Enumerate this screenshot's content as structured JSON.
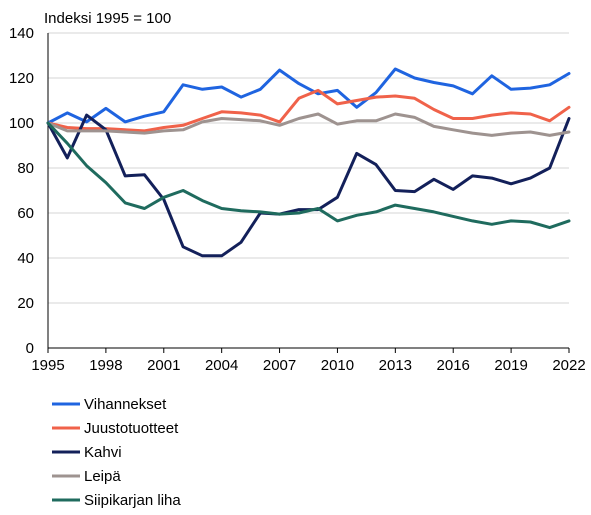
{
  "chart_data": {
    "type": "line",
    "title": "Indeksi 1995 = 100",
    "xlabel": "",
    "ylabel": "",
    "x": [
      1995,
      1996,
      1997,
      1998,
      1999,
      2000,
      2001,
      2002,
      2003,
      2004,
      2005,
      2006,
      2007,
      2008,
      2009,
      2010,
      2011,
      2012,
      2013,
      2014,
      2015,
      2016,
      2017,
      2018,
      2019,
      2020,
      2021,
      2022
    ],
    "xlim": [
      1995,
      2022
    ],
    "ylim": [
      0,
      140
    ],
    "x_ticks": [
      "1995",
      "1998",
      "2001",
      "2004",
      "2007",
      "2010",
      "2013",
      "2016",
      "2019",
      "2022"
    ],
    "y_ticks": [
      "0",
      "20",
      "40",
      "60",
      "80",
      "100",
      "120",
      "140"
    ],
    "grid": "horizontal",
    "legend": "bottom-left",
    "series": [
      {
        "name": "Vihannekset",
        "color": "#1f64e0",
        "values": [
          100,
          104.5,
          100.5,
          106.5,
          100.5,
          103,
          105,
          117,
          115,
          116,
          111.5,
          115,
          123.5,
          117.5,
          113,
          114.5,
          107,
          113.5,
          124,
          120,
          118,
          116.5,
          113,
          121,
          115,
          115.5,
          117,
          122
        ]
      },
      {
        "name": "Juustotuotteet",
        "color": "#f0624a",
        "values": [
          100,
          98,
          97.5,
          97.5,
          97,
          96.5,
          98,
          99,
          102,
          105,
          104.5,
          103.5,
          100.5,
          111,
          114.5,
          108.5,
          110,
          111.5,
          112,
          111,
          106,
          102,
          102,
          103.5,
          104.5,
          104,
          101,
          107
        ]
      },
      {
        "name": "Kahvi",
        "color": "#13205a",
        "values": [
          100,
          84.5,
          103.5,
          97,
          76.5,
          77,
          66,
          45,
          41,
          41,
          47,
          60,
          59.5,
          61.5,
          61.5,
          67,
          86.5,
          81.5,
          70,
          69.5,
          75,
          70.5,
          76.5,
          75.5,
          73,
          75.5,
          80,
          102
        ]
      },
      {
        "name": "Leipä",
        "color": "#9e9390",
        "values": [
          100,
          96.5,
          96.5,
          96.5,
          96,
          95.5,
          96.5,
          97,
          100.5,
          102,
          101.5,
          101,
          99,
          102,
          104,
          99.5,
          101,
          101,
          104,
          102.5,
          98.5,
          97,
          95.5,
          94.5,
          95.5,
          96,
          94.5,
          96
        ]
      },
      {
        "name": "Siipikarjan liha",
        "color": "#1f6b5e",
        "values": [
          100,
          91,
          81,
          73.5,
          64.5,
          62,
          67,
          70,
          65.5,
          62,
          61,
          60.5,
          59.5,
          60,
          62,
          56.5,
          59,
          60.5,
          63.5,
          62,
          60.5,
          58.5,
          56.5,
          55,
          56.5,
          56,
          53.5,
          56.5
        ]
      }
    ]
  }
}
